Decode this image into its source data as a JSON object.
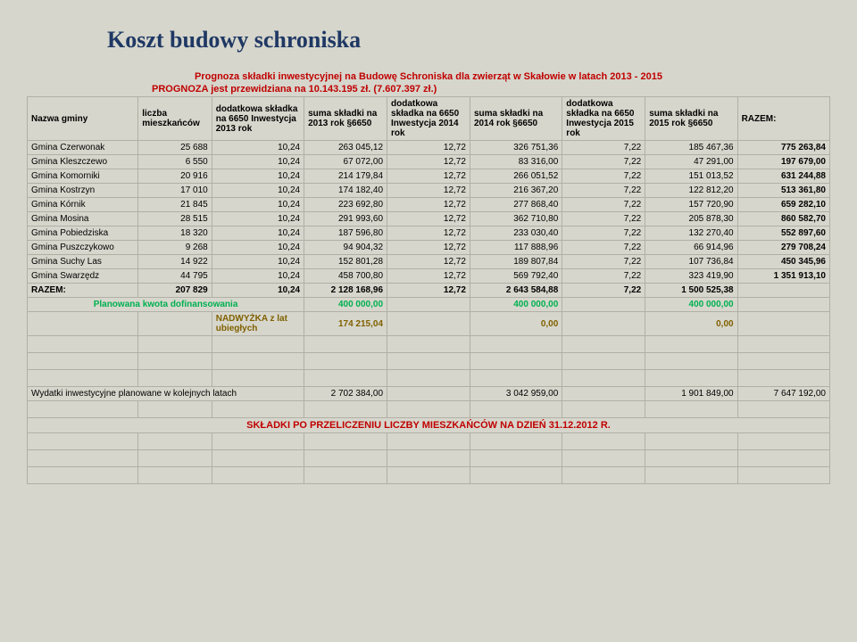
{
  "title": "Koszt budowy schroniska",
  "subtitle": "Prognoza składki inwestycyjnej na Budowę Schroniska dla zwierząt w Skałowie w latach 2013 - 2015",
  "prognoza_line": "PROGNOZA jest przewidziana na 10.143.195 zł. (7.607.397 zł.)",
  "headers": {
    "c0": "Nazwa gminy",
    "c1": "liczba mieszkańców",
    "c2": "dodatkowa składka na 6650 Inwestycja 2013 rok",
    "c3": "suma składki na 2013 rok §6650",
    "c4": "dodatkowa składka na 6650 Inwestycja 2014 rok",
    "c5": "suma składki na 2014 rok §6650",
    "c6": "dodatkowa składka na 6650 Inwestycja 2015 rok",
    "c7": "suma składki na 2015 rok §6650",
    "c8": "RAZEM:"
  },
  "rows": [
    {
      "n": "Gmina Czerwonak",
      "m": "25 688",
      "a": "10,24",
      "b": "263 045,12",
      "c": "12,72",
      "d": "326 751,36",
      "e": "7,22",
      "f": "185 467,36",
      "g": "775 263,84"
    },
    {
      "n": "Gmina Kleszczewo",
      "m": "6 550",
      "a": "10,24",
      "b": "67 072,00",
      "c": "12,72",
      "d": "83 316,00",
      "e": "7,22",
      "f": "47 291,00",
      "g": "197 679,00"
    },
    {
      "n": "Gmina Komorniki",
      "m": "20 916",
      "a": "10,24",
      "b": "214 179,84",
      "c": "12,72",
      "d": "266 051,52",
      "e": "7,22",
      "f": "151 013,52",
      "g": "631 244,88"
    },
    {
      "n": "Gmina Kostrzyn",
      "m": "17 010",
      "a": "10,24",
      "b": "174 182,40",
      "c": "12,72",
      "d": "216 367,20",
      "e": "7,22",
      "f": "122 812,20",
      "g": "513 361,80"
    },
    {
      "n": "Gmina Kórnik",
      "m": "21 845",
      "a": "10,24",
      "b": "223 692,80",
      "c": "12,72",
      "d": "277 868,40",
      "e": "7,22",
      "f": "157 720,90",
      "g": "659 282,10"
    },
    {
      "n": "Gmina Mosina",
      "m": "28 515",
      "a": "10,24",
      "b": "291 993,60",
      "c": "12,72",
      "d": "362 710,80",
      "e": "7,22",
      "f": "205 878,30",
      "g": "860 582,70"
    },
    {
      "n": "Gmina Pobiedziska",
      "m": "18 320",
      "a": "10,24",
      "b": "187 596,80",
      "c": "12,72",
      "d": "233 030,40",
      "e": "7,22",
      "f": "132 270,40",
      "g": "552 897,60"
    },
    {
      "n": "Gmina Puszczykowo",
      "m": "9 268",
      "a": "10,24",
      "b": "94 904,32",
      "c": "12,72",
      "d": "117 888,96",
      "e": "7,22",
      "f": "66 914,96",
      "g": "279 708,24"
    },
    {
      "n": "Gmina Suchy Las",
      "m": "14 922",
      "a": "10,24",
      "b": "152 801,28",
      "c": "12,72",
      "d": "189 807,84",
      "e": "7,22",
      "f": "107 736,84",
      "g": "450 345,96"
    },
    {
      "n": "Gmina Swarzędz",
      "m": "44 795",
      "a": "10,24",
      "b": "458 700,80",
      "c": "12,72",
      "d": "569 792,40",
      "e": "7,22",
      "f": "323 419,90",
      "g": "1 351 913,10"
    }
  ],
  "razem": {
    "label": "RAZEM:",
    "m": "207 829",
    "a": "10,24",
    "b": "2 128 168,96",
    "c": "12,72",
    "d": "2 643 584,88",
    "e": "7,22",
    "f": "1 500 525,38",
    "g": ""
  },
  "plan_row": {
    "label": "Planowana kwota dofinansowania",
    "b": "400 000,00",
    "d": "400 000,00",
    "f": "400 000,00"
  },
  "nadwyzka": {
    "label": "NADWYŻKA z lat ubiegłych",
    "b": "174 215,04",
    "d": "0,00",
    "f": "0,00"
  },
  "wydatki": {
    "label": "Wydatki inwestycyjne planowane w kolejnych latach",
    "b": "2 702 384,00",
    "d": "3 042 959,00",
    "f": "1 901 849,00",
    "g": "7 647 192,00"
  },
  "footer_title": "SKŁADKI PO PRZELICZENIU LICZBY MIESZKAŃCÓW NA DZIEŃ 31.12.2012 R."
}
